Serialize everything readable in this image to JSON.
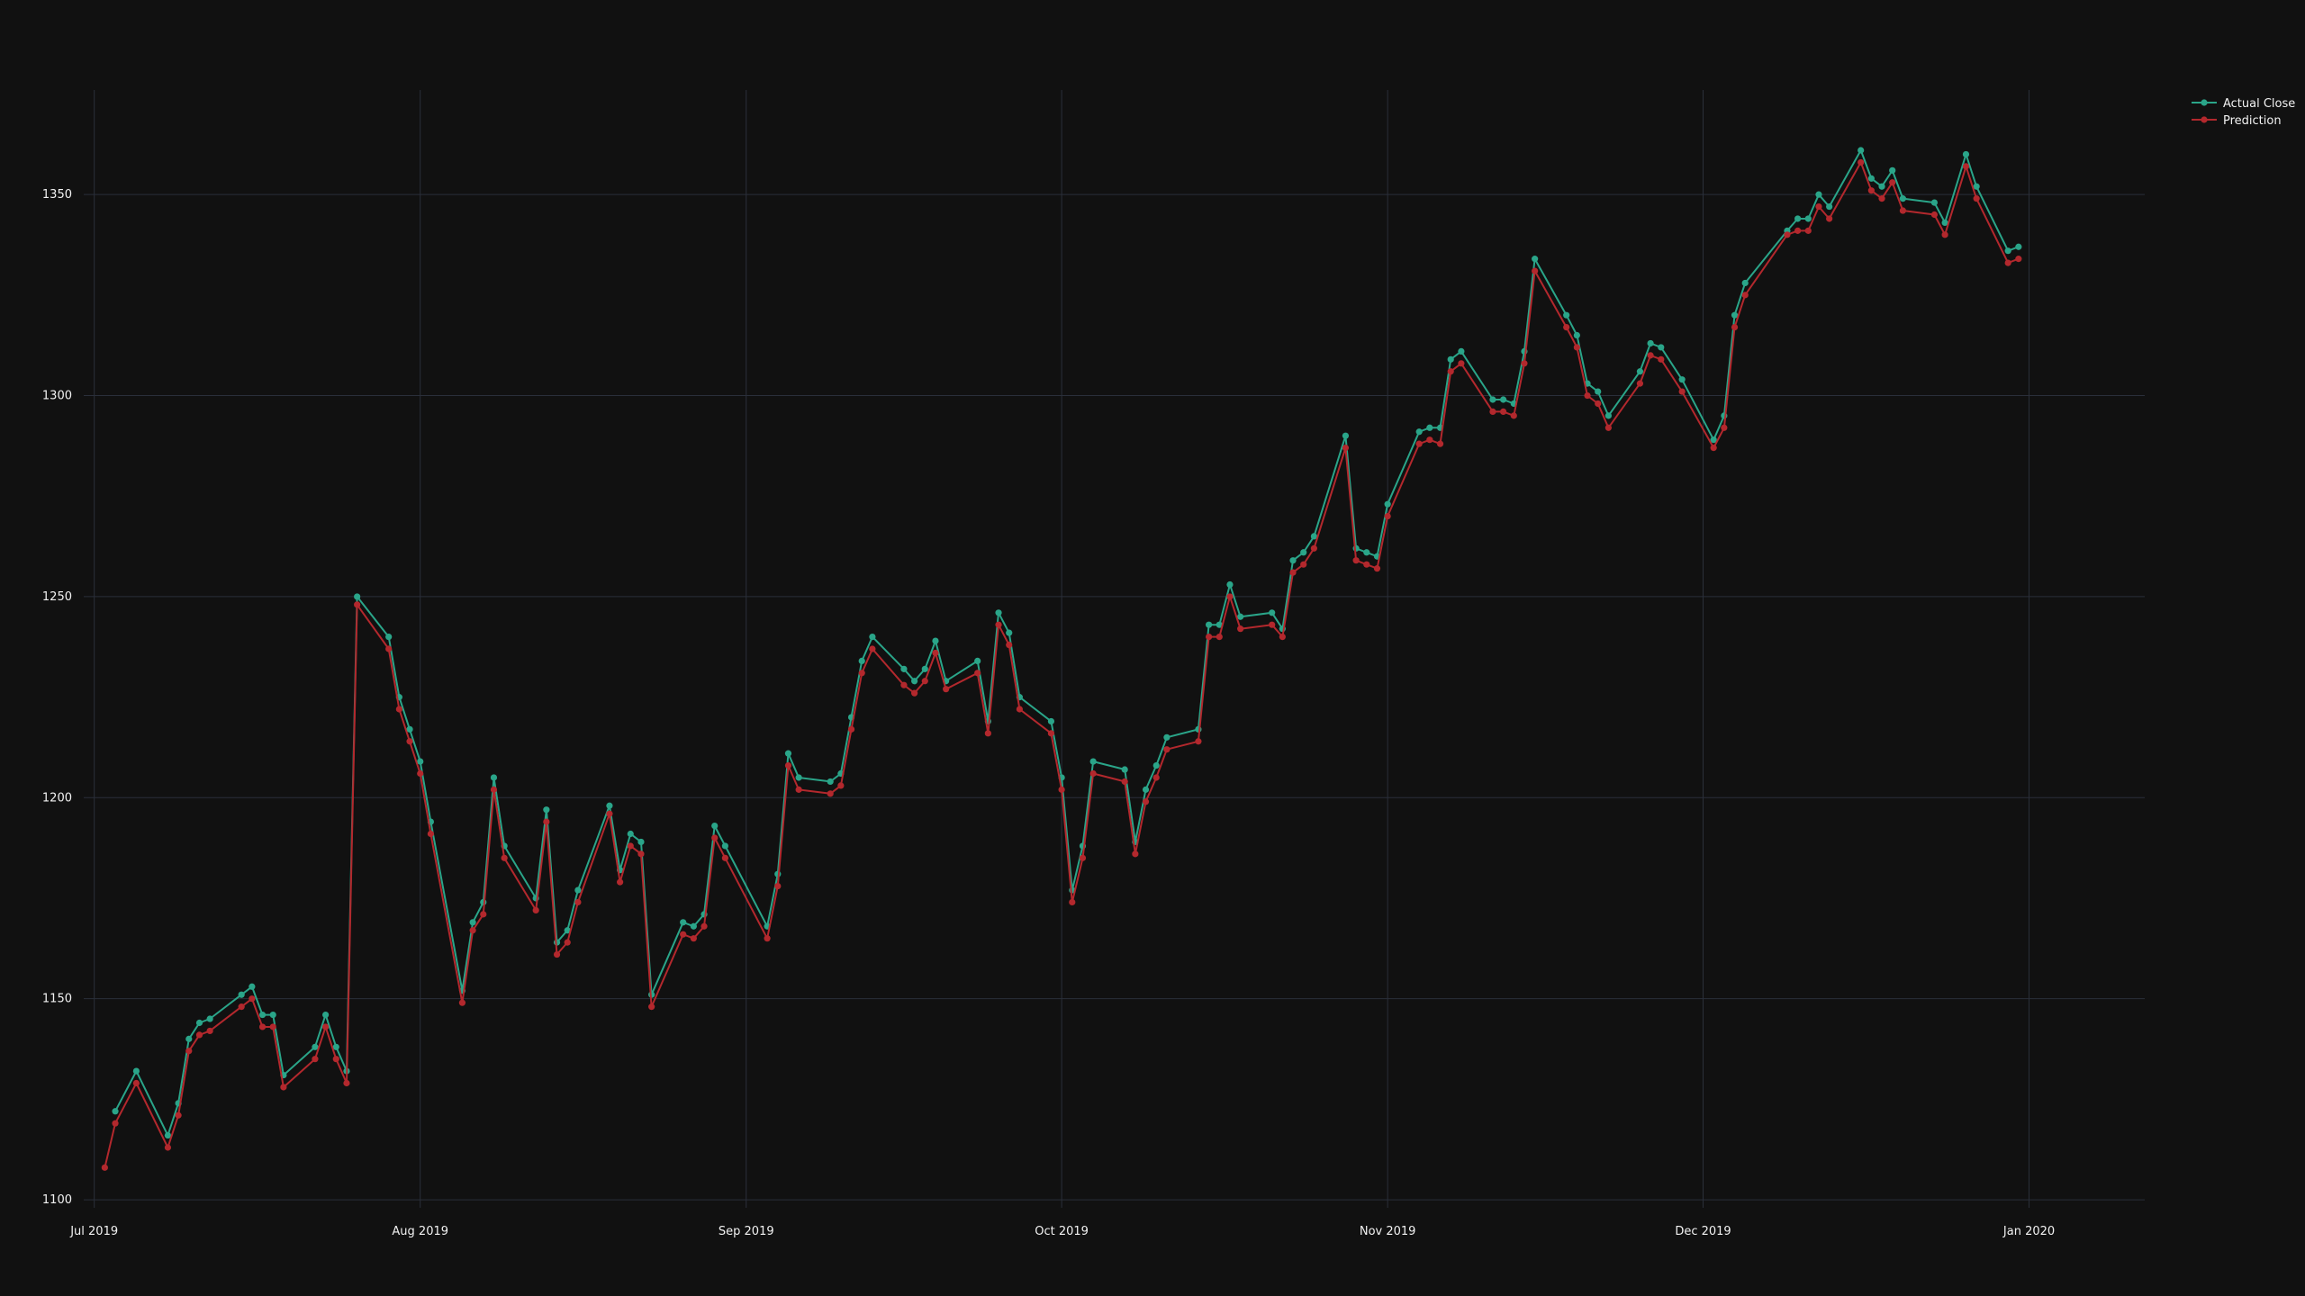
{
  "chart_data": {
    "type": "line",
    "title": "",
    "xlabel": "",
    "ylabel": "",
    "grid": true,
    "legend_position": "top-right",
    "x_range": [
      "2019-06-30",
      "2020-01-12"
    ],
    "ylim": [
      1098,
      1376
    ],
    "y_ticks": [
      1100,
      1150,
      1200,
      1250,
      1300,
      1350
    ],
    "x_ticks": [
      {
        "date": "2019-07-01",
        "label": "Jul 2019"
      },
      {
        "date": "2019-08-01",
        "label": "Aug 2019"
      },
      {
        "date": "2019-09-01",
        "label": "Sep 2019"
      },
      {
        "date": "2019-10-01",
        "label": "Oct 2019"
      },
      {
        "date": "2019-11-01",
        "label": "Nov 2019"
      },
      {
        "date": "2019-12-01",
        "label": "Dec 2019"
      },
      {
        "date": "2020-01-01",
        "label": "Jan 2020"
      }
    ],
    "series": [
      {
        "name": "Actual Close",
        "color": "#2aa589",
        "points": [
          [
            "2019-07-03",
            1122
          ],
          [
            "2019-07-05",
            1132
          ],
          [
            "2019-07-08",
            1116
          ],
          [
            "2019-07-09",
            1124
          ],
          [
            "2019-07-10",
            1140
          ],
          [
            "2019-07-11",
            1144
          ],
          [
            "2019-07-12",
            1145
          ],
          [
            "2019-07-15",
            1151
          ],
          [
            "2019-07-16",
            1153
          ],
          [
            "2019-07-17",
            1146
          ],
          [
            "2019-07-18",
            1146
          ],
          [
            "2019-07-19",
            1131
          ],
          [
            "2019-07-22",
            1138
          ],
          [
            "2019-07-23",
            1146
          ],
          [
            "2019-07-24",
            1138
          ],
          [
            "2019-07-25",
            1132
          ],
          [
            "2019-07-26",
            1250
          ],
          [
            "2019-07-29",
            1240
          ],
          [
            "2019-07-30",
            1225
          ],
          [
            "2019-07-31",
            1217
          ],
          [
            "2019-08-01",
            1209
          ],
          [
            "2019-08-02",
            1194
          ],
          [
            "2019-08-05",
            1152
          ],
          [
            "2019-08-06",
            1169
          ],
          [
            "2019-08-07",
            1174
          ],
          [
            "2019-08-08",
            1205
          ],
          [
            "2019-08-09",
            1188
          ],
          [
            "2019-08-12",
            1175
          ],
          [
            "2019-08-13",
            1197
          ],
          [
            "2019-08-14",
            1164
          ],
          [
            "2019-08-15",
            1167
          ],
          [
            "2019-08-16",
            1177
          ],
          [
            "2019-08-19",
            1198
          ],
          [
            "2019-08-20",
            1182
          ],
          [
            "2019-08-21",
            1191
          ],
          [
            "2019-08-22",
            1189
          ],
          [
            "2019-08-23",
            1151
          ],
          [
            "2019-08-26",
            1169
          ],
          [
            "2019-08-27",
            1168
          ],
          [
            "2019-08-28",
            1171
          ],
          [
            "2019-08-29",
            1193
          ],
          [
            "2019-08-30",
            1188
          ],
          [
            "2019-09-03",
            1168
          ],
          [
            "2019-09-04",
            1181
          ],
          [
            "2019-09-05",
            1211
          ],
          [
            "2019-09-06",
            1205
          ],
          [
            "2019-09-09",
            1204
          ],
          [
            "2019-09-10",
            1206
          ],
          [
            "2019-09-11",
            1220
          ],
          [
            "2019-09-12",
            1234
          ],
          [
            "2019-09-13",
            1240
          ],
          [
            "2019-09-16",
            1232
          ],
          [
            "2019-09-17",
            1229
          ],
          [
            "2019-09-18",
            1232
          ],
          [
            "2019-09-19",
            1239
          ],
          [
            "2019-09-20",
            1229
          ],
          [
            "2019-09-23",
            1234
          ],
          [
            "2019-09-24",
            1219
          ],
          [
            "2019-09-25",
            1246
          ],
          [
            "2019-09-26",
            1241
          ],
          [
            "2019-09-27",
            1225
          ],
          [
            "2019-09-30",
            1219
          ],
          [
            "2019-10-01",
            1205
          ],
          [
            "2019-10-02",
            1177
          ],
          [
            "2019-10-03",
            1188
          ],
          [
            "2019-10-04",
            1209
          ],
          [
            "2019-10-07",
            1207
          ],
          [
            "2019-10-08",
            1189
          ],
          [
            "2019-10-09",
            1202
          ],
          [
            "2019-10-10",
            1208
          ],
          [
            "2019-10-11",
            1215
          ],
          [
            "2019-10-14",
            1217
          ],
          [
            "2019-10-15",
            1243
          ],
          [
            "2019-10-16",
            1243
          ],
          [
            "2019-10-17",
            1253
          ],
          [
            "2019-10-18",
            1245
          ],
          [
            "2019-10-21",
            1246
          ],
          [
            "2019-10-22",
            1242
          ],
          [
            "2019-10-23",
            1259
          ],
          [
            "2019-10-24",
            1261
          ],
          [
            "2019-10-25",
            1265
          ],
          [
            "2019-10-28",
            1290
          ],
          [
            "2019-10-29",
            1262
          ],
          [
            "2019-10-30",
            1261
          ],
          [
            "2019-10-31",
            1260
          ],
          [
            "2019-11-01",
            1273
          ],
          [
            "2019-11-04",
            1291
          ],
          [
            "2019-11-05",
            1292
          ],
          [
            "2019-11-06",
            1292
          ],
          [
            "2019-11-07",
            1309
          ],
          [
            "2019-11-08",
            1311
          ],
          [
            "2019-11-11",
            1299
          ],
          [
            "2019-11-12",
            1299
          ],
          [
            "2019-11-13",
            1298
          ],
          [
            "2019-11-14",
            1311
          ],
          [
            "2019-11-15",
            1334
          ],
          [
            "2019-11-18",
            1320
          ],
          [
            "2019-11-19",
            1315
          ],
          [
            "2019-11-20",
            1303
          ],
          [
            "2019-11-21",
            1301
          ],
          [
            "2019-11-22",
            1295
          ],
          [
            "2019-11-25",
            1306
          ],
          [
            "2019-11-26",
            1313
          ],
          [
            "2019-11-27",
            1312
          ],
          [
            "2019-11-29",
            1304
          ],
          [
            "2019-12-02",
            1289
          ],
          [
            "2019-12-03",
            1295
          ],
          [
            "2019-12-04",
            1320
          ],
          [
            "2019-12-05",
            1328
          ],
          [
            "2019-12-09",
            1341
          ],
          [
            "2019-12-10",
            1344
          ],
          [
            "2019-12-11",
            1344
          ],
          [
            "2019-12-12",
            1350
          ],
          [
            "2019-12-13",
            1347
          ],
          [
            "2019-12-16",
            1361
          ],
          [
            "2019-12-17",
            1354
          ],
          [
            "2019-12-18",
            1352
          ],
          [
            "2019-12-19",
            1356
          ],
          [
            "2019-12-20",
            1349
          ],
          [
            "2019-12-23",
            1348
          ],
          [
            "2019-12-24",
            1343
          ],
          [
            "2019-12-26",
            1360
          ],
          [
            "2019-12-27",
            1352
          ],
          [
            "2019-12-30",
            1336
          ],
          [
            "2019-12-31",
            1337
          ]
        ]
      },
      {
        "name": "Prediction",
        "color": "#b3282d",
        "points": [
          [
            "2019-07-02",
            1108
          ],
          [
            "2019-07-03",
            1119
          ],
          [
            "2019-07-05",
            1129
          ],
          [
            "2019-07-08",
            1113
          ],
          [
            "2019-07-09",
            1121
          ],
          [
            "2019-07-10",
            1137
          ],
          [
            "2019-07-11",
            1141
          ],
          [
            "2019-07-12",
            1142
          ],
          [
            "2019-07-15",
            1148
          ],
          [
            "2019-07-16",
            1150
          ],
          [
            "2019-07-17",
            1143
          ],
          [
            "2019-07-18",
            1143
          ],
          [
            "2019-07-19",
            1128
          ],
          [
            "2019-07-22",
            1135
          ],
          [
            "2019-07-23",
            1143
          ],
          [
            "2019-07-24",
            1135
          ],
          [
            "2019-07-25",
            1129
          ],
          [
            "2019-07-26",
            1248
          ],
          [
            "2019-07-29",
            1237
          ],
          [
            "2019-07-30",
            1222
          ],
          [
            "2019-07-31",
            1214
          ],
          [
            "2019-08-01",
            1206
          ],
          [
            "2019-08-02",
            1191
          ],
          [
            "2019-08-05",
            1149
          ],
          [
            "2019-08-06",
            1167
          ],
          [
            "2019-08-07",
            1171
          ],
          [
            "2019-08-08",
            1202
          ],
          [
            "2019-08-09",
            1185
          ],
          [
            "2019-08-12",
            1172
          ],
          [
            "2019-08-13",
            1194
          ],
          [
            "2019-08-14",
            1161
          ],
          [
            "2019-08-15",
            1164
          ],
          [
            "2019-08-16",
            1174
          ],
          [
            "2019-08-19",
            1196
          ],
          [
            "2019-08-20",
            1179
          ],
          [
            "2019-08-21",
            1188
          ],
          [
            "2019-08-22",
            1186
          ],
          [
            "2019-08-23",
            1148
          ],
          [
            "2019-08-26",
            1166
          ],
          [
            "2019-08-27",
            1165
          ],
          [
            "2019-08-28",
            1168
          ],
          [
            "2019-08-29",
            1190
          ],
          [
            "2019-08-30",
            1185
          ],
          [
            "2019-09-03",
            1165
          ],
          [
            "2019-09-04",
            1178
          ],
          [
            "2019-09-05",
            1208
          ],
          [
            "2019-09-06",
            1202
          ],
          [
            "2019-09-09",
            1201
          ],
          [
            "2019-09-10",
            1203
          ],
          [
            "2019-09-11",
            1217
          ],
          [
            "2019-09-12",
            1231
          ],
          [
            "2019-09-13",
            1237
          ],
          [
            "2019-09-16",
            1228
          ],
          [
            "2019-09-17",
            1226
          ],
          [
            "2019-09-18",
            1229
          ],
          [
            "2019-09-19",
            1236
          ],
          [
            "2019-09-20",
            1227
          ],
          [
            "2019-09-23",
            1231
          ],
          [
            "2019-09-24",
            1216
          ],
          [
            "2019-09-25",
            1243
          ],
          [
            "2019-09-26",
            1238
          ],
          [
            "2019-09-27",
            1222
          ],
          [
            "2019-09-30",
            1216
          ],
          [
            "2019-10-01",
            1202
          ],
          [
            "2019-10-02",
            1174
          ],
          [
            "2019-10-03",
            1185
          ],
          [
            "2019-10-04",
            1206
          ],
          [
            "2019-10-07",
            1204
          ],
          [
            "2019-10-08",
            1186
          ],
          [
            "2019-10-09",
            1199
          ],
          [
            "2019-10-10",
            1205
          ],
          [
            "2019-10-11",
            1212
          ],
          [
            "2019-10-14",
            1214
          ],
          [
            "2019-10-15",
            1240
          ],
          [
            "2019-10-16",
            1240
          ],
          [
            "2019-10-17",
            1250
          ],
          [
            "2019-10-18",
            1242
          ],
          [
            "2019-10-21",
            1243
          ],
          [
            "2019-10-22",
            1240
          ],
          [
            "2019-10-23",
            1256
          ],
          [
            "2019-10-24",
            1258
          ],
          [
            "2019-10-25",
            1262
          ],
          [
            "2019-10-28",
            1287
          ],
          [
            "2019-10-29",
            1259
          ],
          [
            "2019-10-30",
            1258
          ],
          [
            "2019-10-31",
            1257
          ],
          [
            "2019-11-01",
            1270
          ],
          [
            "2019-11-04",
            1288
          ],
          [
            "2019-11-05",
            1289
          ],
          [
            "2019-11-06",
            1288
          ],
          [
            "2019-11-07",
            1306
          ],
          [
            "2019-11-08",
            1308
          ],
          [
            "2019-11-11",
            1296
          ],
          [
            "2019-11-12",
            1296
          ],
          [
            "2019-11-13",
            1295
          ],
          [
            "2019-11-14",
            1308
          ],
          [
            "2019-11-15",
            1331
          ],
          [
            "2019-11-18",
            1317
          ],
          [
            "2019-11-19",
            1312
          ],
          [
            "2019-11-20",
            1300
          ],
          [
            "2019-11-21",
            1298
          ],
          [
            "2019-11-22",
            1292
          ],
          [
            "2019-11-25",
            1303
          ],
          [
            "2019-11-26",
            1310
          ],
          [
            "2019-11-27",
            1309
          ],
          [
            "2019-11-29",
            1301
          ],
          [
            "2019-12-02",
            1287
          ],
          [
            "2019-12-03",
            1292
          ],
          [
            "2019-12-04",
            1317
          ],
          [
            "2019-12-05",
            1325
          ],
          [
            "2019-12-09",
            1340
          ],
          [
            "2019-12-10",
            1341
          ],
          [
            "2019-12-11",
            1341
          ],
          [
            "2019-12-12",
            1347
          ],
          [
            "2019-12-13",
            1344
          ],
          [
            "2019-12-16",
            1358
          ],
          [
            "2019-12-17",
            1351
          ],
          [
            "2019-12-18",
            1349
          ],
          [
            "2019-12-19",
            1353
          ],
          [
            "2019-12-20",
            1346
          ],
          [
            "2019-12-23",
            1345
          ],
          [
            "2019-12-24",
            1340
          ],
          [
            "2019-12-26",
            1357
          ],
          [
            "2019-12-27",
            1349
          ],
          [
            "2019-12-30",
            1333
          ],
          [
            "2019-12-31",
            1334
          ]
        ]
      }
    ]
  }
}
